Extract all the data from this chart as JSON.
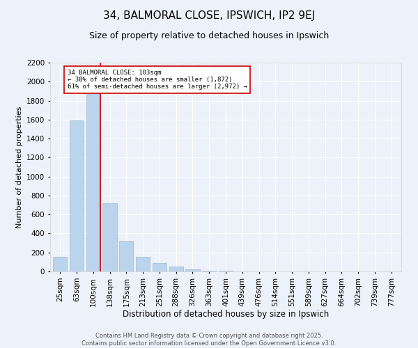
{
  "title1": "34, BALMORAL CLOSE, IPSWICH, IP2 9EJ",
  "title2": "Size of property relative to detached houses in Ipswich",
  "xlabel": "Distribution of detached houses by size in Ipswich",
  "ylabel": "Number of detached properties",
  "categories": [
    "25sqm",
    "63sqm",
    "100sqm",
    "138sqm",
    "175sqm",
    "213sqm",
    "251sqm",
    "288sqm",
    "326sqm",
    "363sqm",
    "401sqm",
    "439sqm",
    "476sqm",
    "514sqm",
    "551sqm",
    "589sqm",
    "627sqm",
    "664sqm",
    "702sqm",
    "739sqm",
    "777sqm"
  ],
  "values": [
    155,
    1590,
    1872,
    720,
    320,
    155,
    85,
    50,
    25,
    10,
    5,
    3,
    2,
    1,
    1,
    0,
    0,
    0,
    0,
    0,
    0
  ],
  "bar_color": "#bad4ec",
  "bar_edge_color": "#9ab8d8",
  "highlight_color": "#cc0000",
  "annotation_text": "34 BALMORAL CLOSE: 103sqm\n← 38% of detached houses are smaller (1,872)\n61% of semi-detached houses are larger (2,972) →",
  "annotation_box_color": "#ffffff",
  "annotation_box_edge": "#cc0000",
  "ylim": [
    0,
    2200
  ],
  "yticks": [
    0,
    200,
    400,
    600,
    800,
    1000,
    1200,
    1400,
    1600,
    1800,
    2000,
    2200
  ],
  "background_color": "#edf1f9",
  "footer": "Contains HM Land Registry data © Crown copyright and database right 2025.\nContains public sector information licensed under the Open Government Licence v3.0.",
  "title1_fontsize": 11,
  "title2_fontsize": 9,
  "xlabel_fontsize": 8.5,
  "ylabel_fontsize": 8,
  "tick_fontsize": 7.5,
  "footer_fontsize": 6
}
